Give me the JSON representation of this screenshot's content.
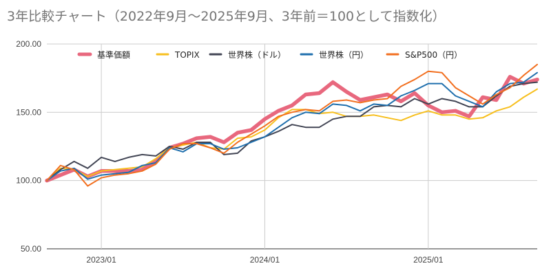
{
  "chart_data": {
    "type": "line",
    "title": "3年比較チャート（2022年9月～2025年9月、3年前＝100として指数化）",
    "xlabel": "",
    "ylabel": "",
    "ylim": [
      50,
      200
    ],
    "y_ticks": [
      "50.00",
      "100.00",
      "150.00",
      "200.00"
    ],
    "x_ticks": [
      {
        "label": "2023/01",
        "x": "2023-01"
      },
      {
        "label": "2024/01",
        "x": "2024-01"
      },
      {
        "label": "2025/01",
        "x": "2025-01"
      }
    ],
    "grid": true,
    "legend_position": "top",
    "x": [
      "2022-09",
      "2022-10",
      "2022-11",
      "2022-12",
      "2023-01",
      "2023-02",
      "2023-03",
      "2023-04",
      "2023-05",
      "2023-06",
      "2023-07",
      "2023-08",
      "2023-09",
      "2023-10",
      "2023-11",
      "2023-12",
      "2024-01",
      "2024-02",
      "2024-03",
      "2024-04",
      "2024-05",
      "2024-06",
      "2024-07",
      "2024-08",
      "2024-09",
      "2024-10",
      "2024-11",
      "2024-12",
      "2025-01",
      "2025-02",
      "2025-03",
      "2025-04",
      "2025-05",
      "2025-06",
      "2025-07",
      "2025-08",
      "2025-09"
    ],
    "series": [
      {
        "name": "基準価額",
        "color": "#e8687e",
        "values": [
          100,
          104,
          108,
          103,
          107,
          107,
          107,
          108,
          114,
          124,
          127,
          131,
          132,
          128,
          135,
          137,
          145,
          151,
          155,
          163,
          164,
          172,
          165,
          159,
          161,
          163,
          158,
          164,
          155,
          150,
          151,
          147,
          161,
          159,
          176,
          171,
          174
        ]
      },
      {
        "name": "TOPIX",
        "color": "#f7bf1e",
        "values": [
          100,
          109,
          108,
          103,
          107,
          108,
          109,
          110,
          116,
          124,
          126,
          128,
          124,
          123,
          131,
          132,
          137,
          146,
          152,
          152,
          149,
          150,
          147,
          147,
          148,
          146,
          144,
          148,
          151,
          148,
          148,
          145,
          146,
          151,
          154,
          161,
          167
        ]
      },
      {
        "name": "世界株（ドル）",
        "color": "#424554",
        "values": [
          100,
          108,
          114,
          109,
          117,
          114,
          117,
          119,
          118,
          125,
          123,
          128,
          128,
          119,
          120,
          129,
          132,
          136,
          141,
          139,
          139,
          145,
          147,
          147,
          154,
          155,
          154,
          160,
          156,
          160,
          158,
          154,
          154,
          162,
          169,
          171,
          172
        ]
      },
      {
        "name": "世界株（円）",
        "color": "#1f6fad",
        "values": [
          100,
          107,
          109,
          101,
          104,
          105,
          106,
          111,
          113,
          124,
          121,
          127,
          127,
          123,
          124,
          128,
          132,
          139,
          146,
          150,
          149,
          156,
          155,
          151,
          156,
          155,
          162,
          166,
          171,
          171,
          162,
          158,
          154,
          165,
          171,
          172,
          179
        ]
      },
      {
        "name": "S&P500（円）",
        "color": "#f26f1f",
        "values": [
          100,
          111,
          108,
          96,
          102,
          104,
          105,
          107,
          112,
          123,
          127,
          127,
          124,
          120,
          128,
          134,
          140,
          147,
          150,
          152,
          151,
          158,
          159,
          157,
          159,
          160,
          169,
          174,
          180,
          179,
          168,
          162,
          156,
          163,
          168,
          177,
          185
        ]
      }
    ]
  }
}
